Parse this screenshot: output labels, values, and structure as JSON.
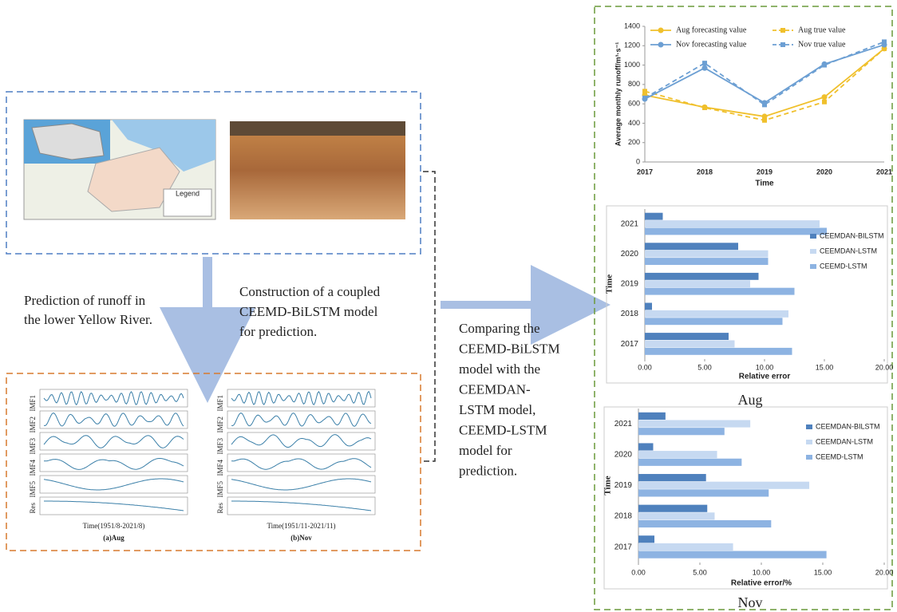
{
  "map_panel": {
    "legend_title": "Legend"
  },
  "left_text": [
    "Prediction of runoff in",
    "the lower Yellow River."
  ],
  "center_text": [
    "Construction of a coupled",
    "CEEMD-BiLSTM model",
    "for prediction."
  ],
  "compare_text": [
    "Comparing the",
    "CEEMD-BiLSTM",
    "model with the",
    "CEEMDAN-",
    "LSTM model,",
    "CEEMD-LSTM",
    "model for",
    "prediction."
  ],
  "imf_panel": {
    "aug": {
      "labels": [
        "IMF1",
        "IMF2",
        "IMF3",
        "IMF4",
        "IMF5",
        "Res"
      ],
      "xlabel": "Time(1951/8-2021/8)",
      "caption": "(a)Aug"
    },
    "nov": {
      "labels": [
        "IMF1",
        "IMF2",
        "IMF3",
        "IMF4",
        "IMF5",
        "Res"
      ],
      "xlabel": "Time(1951/11-2021/11)",
      "caption": "(b)Nov"
    }
  },
  "chart_data": [
    {
      "type": "line",
      "x_label": "Time",
      "y_label": "Average monthly runoff/m³·s⁻¹",
      "categories": [
        "2017",
        "2018",
        "2019",
        "2020",
        "2021"
      ],
      "ylim": [
        0,
        1400
      ],
      "yticks": [
        0,
        200,
        400,
        600,
        800,
        1000,
        1200,
        1400
      ],
      "series": [
        {
          "name": "Aug forecasting value",
          "color": "#f0c02c",
          "marker": "circle",
          "dashed": false,
          "values": [
            690,
            565,
            470,
            670,
            1170
          ]
        },
        {
          "name": "Aug true value",
          "color": "#f0c02c",
          "marker": "square",
          "dashed": true,
          "values": [
            730,
            560,
            430,
            620,
            1170
          ]
        },
        {
          "name": "Nov forecasting value",
          "color": "#6c9fd3",
          "marker": "circle",
          "dashed": false,
          "values": [
            650,
            970,
            610,
            1010,
            1210
          ]
        },
        {
          "name": "Nov true value",
          "color": "#6c9fd3",
          "marker": "square",
          "dashed": true,
          "values": [
            660,
            1020,
            590,
            1000,
            1240
          ]
        }
      ]
    },
    {
      "type": "bar",
      "orientation": "horizontal",
      "caption": "Aug",
      "x_label": "Relative error",
      "y_label": "Time",
      "categories": [
        "2017",
        "2018",
        "2019",
        "2020",
        "2021"
      ],
      "xlim": [
        0,
        20
      ],
      "xticks": [
        {
          "value": 0,
          "label": "0.00"
        },
        {
          "value": 5,
          "label": "5.00"
        },
        {
          "value": 10,
          "label": "10.00"
        },
        {
          "value": 15,
          "label": "15.00"
        },
        {
          "value": 20,
          "label": "20.00"
        }
      ],
      "legend": "right",
      "series": [
        {
          "name": "CEEMDAN-BILSTM",
          "color": "#4f81bd",
          "values": [
            7.0,
            0.6,
            9.5,
            7.8,
            1.5
          ]
        },
        {
          "name": "CEEMDAN-LSTM",
          "color": "#c6d9f1",
          "values": [
            7.5,
            12.0,
            8.8,
            10.3,
            14.6
          ]
        },
        {
          "name": "CEEMD-LSTM",
          "color": "#8db3e2",
          "values": [
            12.3,
            11.5,
            12.5,
            10.3,
            15.2
          ]
        }
      ]
    },
    {
      "type": "bar",
      "orientation": "horizontal",
      "caption": "Nov",
      "x_label": "Relative error/%",
      "y_label": "Time",
      "categories": [
        "2017",
        "2018",
        "2019",
        "2020",
        "2021"
      ],
      "xlim": [
        0,
        20
      ],
      "xticks": [
        {
          "value": 0,
          "label": "0.00"
        },
        {
          "value": 5,
          "label": "5.00"
        },
        {
          "value": 10,
          "label": "10.00"
        },
        {
          "value": 15,
          "label": "15.00"
        },
        {
          "value": 20,
          "label": "20.00"
        }
      ],
      "legend": "right",
      "series": [
        {
          "name": "CEEMDAN-BILSTM",
          "color": "#4f81bd",
          "values": [
            1.3,
            5.6,
            5.5,
            1.2,
            2.2
          ]
        },
        {
          "name": "CEEMDAN-LSTM",
          "color": "#c6d9f1",
          "values": [
            7.7,
            6.2,
            13.9,
            6.4,
            9.1
          ]
        },
        {
          "name": "CEEMD-LSTM",
          "color": "#8db3e2",
          "values": [
            15.3,
            10.8,
            10.6,
            8.4,
            7.0
          ]
        }
      ]
    }
  ]
}
